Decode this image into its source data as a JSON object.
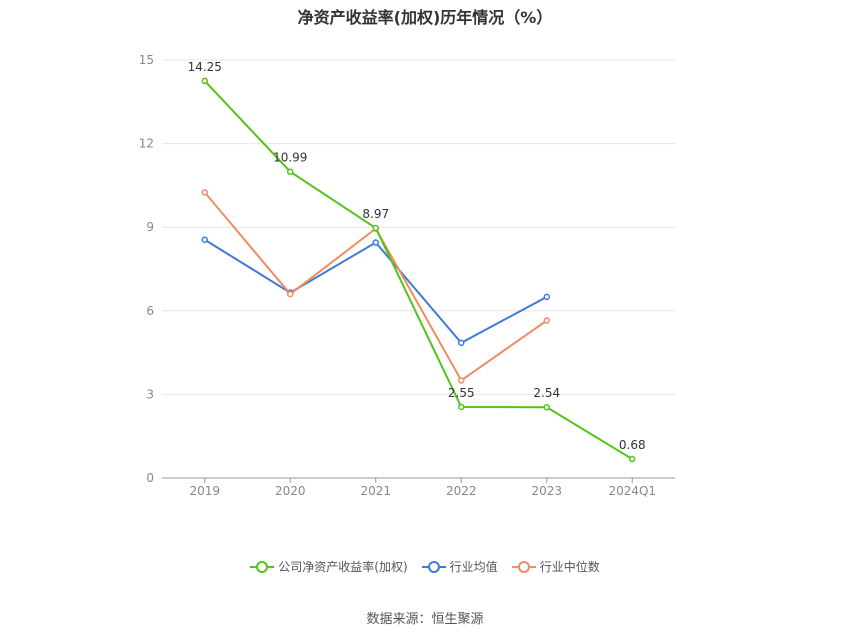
{
  "title": "净资产收益率(加权)历年情况（%）",
  "source": "数据来源：恒生聚源",
  "chart_data": {
    "type": "line",
    "title": "净资产收益率(加权)历年情况（%）",
    "categories": [
      "2019",
      "2020",
      "2021",
      "2022",
      "2023",
      "2024Q1"
    ],
    "ylim": [
      0,
      15
    ],
    "yticks": [
      0,
      3,
      6,
      9,
      12,
      15
    ],
    "grid": true,
    "legend_position": "bottom",
    "series": [
      {
        "name": "公司净资产收益率(加权)",
        "color": "#52c41a",
        "values": [
          14.25,
          10.99,
          8.97,
          2.55,
          2.54,
          0.68
        ],
        "labels": [
          "14.25",
          "10.99",
          "8.97",
          "2.55",
          "2.54",
          "0.68"
        ]
      },
      {
        "name": "行业均值",
        "color": "#3d7ad9",
        "values": [
          8.55,
          6.65,
          8.45,
          4.85,
          6.5,
          null
        ]
      },
      {
        "name": "行业中位数",
        "color": "#f08c61",
        "values": [
          10.25,
          6.6,
          8.95,
          3.5,
          5.65,
          null
        ]
      }
    ]
  }
}
